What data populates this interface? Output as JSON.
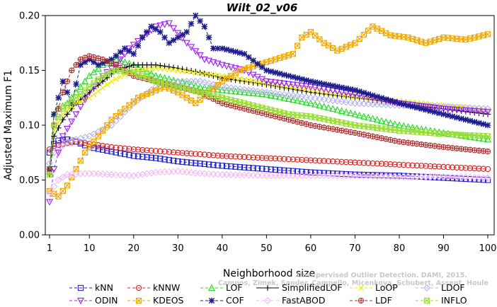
{
  "chart_data": {
    "type": "line",
    "title": "Wilt_02_v06",
    "xlabel": "Neighborhood size",
    "ylabel": "Adjusted Maximum F1",
    "xlim": [
      1,
      100
    ],
    "ylim": [
      0,
      0.2
    ],
    "x_ticks": [
      "1",
      "10",
      "20",
      "30",
      "40",
      "50",
      "60",
      "70",
      "80",
      "90",
      "100"
    ],
    "y_ticks": [
      "0.00",
      "0.05",
      "0.10",
      "0.15",
      "0.20"
    ],
    "grid": false,
    "legend_position": "bottom",
    "watermark": [
      "Campos, Zimek, Sander, Campello, Micenkova, Schubert, Assent, Houle",
      "Unsupervised Outlier Detection. DAMI, 2015."
    ],
    "series": [
      {
        "name": "kNN",
        "color": "#1f1fd0",
        "marker": "square",
        "dash": "4,3",
        "points": [
          [
            1,
            0.075
          ],
          [
            2,
            0.083
          ],
          [
            3,
            0.086
          ],
          [
            5,
            0.087
          ],
          [
            7,
            0.085
          ],
          [
            10,
            0.08
          ],
          [
            15,
            0.076
          ],
          [
            20,
            0.072
          ],
          [
            25,
            0.07
          ],
          [
            30,
            0.067
          ],
          [
            40,
            0.063
          ],
          [
            50,
            0.06
          ],
          [
            60,
            0.057
          ],
          [
            70,
            0.055
          ],
          [
            80,
            0.054
          ],
          [
            90,
            0.052
          ],
          [
            100,
            0.05
          ]
        ]
      },
      {
        "name": "kNNW",
        "color": "#e02020",
        "marker": "circle",
        "dash": "4,3",
        "points": [
          [
            1,
            0.078
          ],
          [
            2,
            0.081
          ],
          [
            4,
            0.083
          ],
          [
            7,
            0.085
          ],
          [
            10,
            0.083
          ],
          [
            15,
            0.08
          ],
          [
            20,
            0.078
          ],
          [
            30,
            0.075
          ],
          [
            40,
            0.072
          ],
          [
            50,
            0.07
          ],
          [
            60,
            0.068
          ],
          [
            70,
            0.066
          ],
          [
            80,
            0.064
          ],
          [
            90,
            0.062
          ],
          [
            100,
            0.06
          ]
        ]
      },
      {
        "name": "LOF",
        "color": "#22dd22",
        "marker": "triangle",
        "dash": "4,3",
        "points": [
          [
            1,
            0.058
          ],
          [
            2,
            0.11
          ],
          [
            3,
            0.115
          ],
          [
            5,
            0.12
          ],
          [
            7,
            0.13
          ],
          [
            10,
            0.145
          ],
          [
            13,
            0.155
          ],
          [
            16,
            0.16
          ],
          [
            20,
            0.155
          ],
          [
            25,
            0.145
          ],
          [
            30,
            0.14
          ],
          [
            35,
            0.135
          ],
          [
            40,
            0.132
          ],
          [
            45,
            0.13
          ],
          [
            50,
            0.128
          ],
          [
            60,
            0.12
          ],
          [
            70,
            0.11
          ],
          [
            80,
            0.1
          ],
          [
            90,
            0.093
          ],
          [
            100,
            0.087
          ]
        ]
      },
      {
        "name": "SimplifiedLOF",
        "color": "#000000",
        "marker": "plus",
        "dash": "none",
        "points": [
          [
            1,
            0.055
          ],
          [
            2,
            0.09
          ],
          [
            4,
            0.105
          ],
          [
            7,
            0.12
          ],
          [
            10,
            0.13
          ],
          [
            13,
            0.14
          ],
          [
            16,
            0.15
          ],
          [
            20,
            0.155
          ],
          [
            25,
            0.155
          ],
          [
            30,
            0.152
          ],
          [
            35,
            0.148
          ],
          [
            40,
            0.143
          ],
          [
            45,
            0.14
          ],
          [
            50,
            0.137
          ],
          [
            60,
            0.13
          ],
          [
            70,
            0.125
          ],
          [
            80,
            0.12
          ],
          [
            90,
            0.115
          ],
          [
            100,
            0.11
          ]
        ]
      },
      {
        "name": "LoOP",
        "color": "#e8e800",
        "marker": "cross",
        "dash": "4,3",
        "points": [
          [
            1,
            0.06
          ],
          [
            2,
            0.095
          ],
          [
            4,
            0.11
          ],
          [
            7,
            0.12
          ],
          [
            10,
            0.125
          ],
          [
            15,
            0.14
          ],
          [
            20,
            0.15
          ],
          [
            25,
            0.152
          ],
          [
            30,
            0.15
          ],
          [
            40,
            0.145
          ],
          [
            50,
            0.138
          ],
          [
            60,
            0.132
          ],
          [
            70,
            0.126
          ],
          [
            80,
            0.122
          ],
          [
            90,
            0.118
          ],
          [
            100,
            0.114
          ]
        ]
      },
      {
        "name": "LDOF",
        "color": "#b4b4f0",
        "marker": "diamond",
        "dash": "4,3",
        "points": [
          [
            1,
            0.065
          ],
          [
            2,
            0.075
          ],
          [
            5,
            0.085
          ],
          [
            10,
            0.09
          ],
          [
            15,
            0.1
          ],
          [
            20,
            0.12
          ],
          [
            25,
            0.135
          ],
          [
            30,
            0.14
          ],
          [
            35,
            0.14
          ],
          [
            40,
            0.135
          ],
          [
            50,
            0.13
          ],
          [
            60,
            0.125
          ],
          [
            70,
            0.12
          ],
          [
            80,
            0.118
          ],
          [
            90,
            0.117
          ],
          [
            100,
            0.115
          ]
        ]
      },
      {
        "name": "ODIN",
        "color": "#a020f0",
        "marker": "triangle-down",
        "dash": "4,3",
        "points": [
          [
            1,
            0.03
          ],
          [
            2,
            0.06
          ],
          [
            4,
            0.09
          ],
          [
            7,
            0.11
          ],
          [
            10,
            0.13
          ],
          [
            13,
            0.145
          ],
          [
            16,
            0.155
          ],
          [
            19,
            0.17
          ],
          [
            22,
            0.18
          ],
          [
            25,
            0.19
          ],
          [
            28,
            0.193
          ],
          [
            32,
            0.175
          ],
          [
            36,
            0.16
          ],
          [
            40,
            0.155
          ],
          [
            45,
            0.15
          ],
          [
            50,
            0.14
          ],
          [
            60,
            0.135
          ],
          [
            70,
            0.128
          ],
          [
            80,
            0.12
          ],
          [
            90,
            0.115
          ],
          [
            100,
            0.112
          ]
        ]
      },
      {
        "name": "KDEOS",
        "color": "#f0a800",
        "marker": "square-x",
        "dash": "4,3",
        "points": [
          [
            1,
            0.04
          ],
          [
            3,
            0.035
          ],
          [
            5,
            0.045
          ],
          [
            7,
            0.06
          ],
          [
            9,
            0.075
          ],
          [
            11,
            0.085
          ],
          [
            13,
            0.095
          ],
          [
            15,
            0.105
          ],
          [
            18,
            0.115
          ],
          [
            21,
            0.125
          ],
          [
            24,
            0.13
          ],
          [
            27,
            0.135
          ],
          [
            30,
            0.13
          ],
          [
            32,
            0.125
          ],
          [
            34,
            0.12
          ],
          [
            37,
            0.13
          ],
          [
            40,
            0.14
          ],
          [
            44,
            0.15
          ],
          [
            48,
            0.155
          ],
          [
            52,
            0.16
          ],
          [
            56,
            0.165
          ],
          [
            58,
            0.18
          ],
          [
            60,
            0.185
          ],
          [
            63,
            0.175
          ],
          [
            66,
            0.168
          ],
          [
            70,
            0.175
          ],
          [
            74,
            0.19
          ],
          [
            78,
            0.182
          ],
          [
            82,
            0.18
          ],
          [
            86,
            0.175
          ],
          [
            90,
            0.18
          ],
          [
            95,
            0.178
          ],
          [
            100,
            0.183
          ]
        ]
      },
      {
        "name": "COF",
        "color": "#1a1a8c",
        "marker": "asterisk",
        "dash": "4,3",
        "points": [
          [
            1,
            0.06
          ],
          [
            2,
            0.11
          ],
          [
            4,
            0.14
          ],
          [
            6,
            0.12
          ],
          [
            8,
            0.155
          ],
          [
            10,
            0.16
          ],
          [
            12,
            0.155
          ],
          [
            15,
            0.16
          ],
          [
            18,
            0.17
          ],
          [
            20,
            0.165
          ],
          [
            22,
            0.18
          ],
          [
            24,
            0.19
          ],
          [
            26,
            0.185
          ],
          [
            28,
            0.175
          ],
          [
            30,
            0.18
          ],
          [
            32,
            0.185
          ],
          [
            34,
            0.2
          ],
          [
            36,
            0.19
          ],
          [
            38,
            0.17
          ],
          [
            40,
            0.17
          ],
          [
            45,
            0.165
          ],
          [
            50,
            0.15
          ],
          [
            55,
            0.145
          ],
          [
            60,
            0.14
          ],
          [
            70,
            0.132
          ],
          [
            80,
            0.12
          ],
          [
            90,
            0.11
          ],
          [
            100,
            0.1
          ]
        ]
      },
      {
        "name": "FastABOD",
        "color": "#f4b8f4",
        "marker": "diamond",
        "dash": "4,3",
        "points": [
          [
            1,
            0.038
          ],
          [
            3,
            0.05
          ],
          [
            5,
            0.055
          ],
          [
            10,
            0.056
          ],
          [
            15,
            0.055
          ],
          [
            20,
            0.054
          ],
          [
            25,
            0.057
          ],
          [
            30,
            0.058
          ],
          [
            35,
            0.056
          ],
          [
            40,
            0.055
          ],
          [
            50,
            0.054
          ],
          [
            60,
            0.054
          ],
          [
            70,
            0.054
          ],
          [
            80,
            0.053
          ],
          [
            90,
            0.053
          ],
          [
            100,
            0.052
          ]
        ]
      },
      {
        "name": "LDF",
        "color": "#b03030",
        "marker": "circle-plus",
        "dash": "4,3",
        "points": [
          [
            1,
            0.06
          ],
          [
            2,
            0.1
          ],
          [
            4,
            0.13
          ],
          [
            6,
            0.15
          ],
          [
            8,
            0.16
          ],
          [
            10,
            0.163
          ],
          [
            13,
            0.16
          ],
          [
            16,
            0.155
          ],
          [
            20,
            0.145
          ],
          [
            25,
            0.14
          ],
          [
            30,
            0.135
          ],
          [
            35,
            0.13
          ],
          [
            40,
            0.12
          ],
          [
            45,
            0.115
          ],
          [
            50,
            0.11
          ],
          [
            55,
            0.105
          ],
          [
            60,
            0.1
          ],
          [
            70,
            0.093
          ],
          [
            80,
            0.085
          ],
          [
            90,
            0.08
          ],
          [
            100,
            0.076
          ]
        ]
      },
      {
        "name": "INFLO",
        "color": "#99dd33",
        "marker": "star-box",
        "dash": "4,3",
        "points": [
          [
            1,
            0.055
          ],
          [
            2,
            0.1
          ],
          [
            4,
            0.115
          ],
          [
            7,
            0.125
          ],
          [
            10,
            0.135
          ],
          [
            13,
            0.145
          ],
          [
            16,
            0.15
          ],
          [
            20,
            0.148
          ],
          [
            25,
            0.14
          ],
          [
            30,
            0.135
          ],
          [
            35,
            0.13
          ],
          [
            40,
            0.125
          ],
          [
            45,
            0.12
          ],
          [
            50,
            0.115
          ],
          [
            55,
            0.11
          ],
          [
            60,
            0.108
          ],
          [
            70,
            0.1
          ],
          [
            80,
            0.095
          ],
          [
            90,
            0.092
          ],
          [
            100,
            0.09
          ]
        ]
      }
    ]
  }
}
